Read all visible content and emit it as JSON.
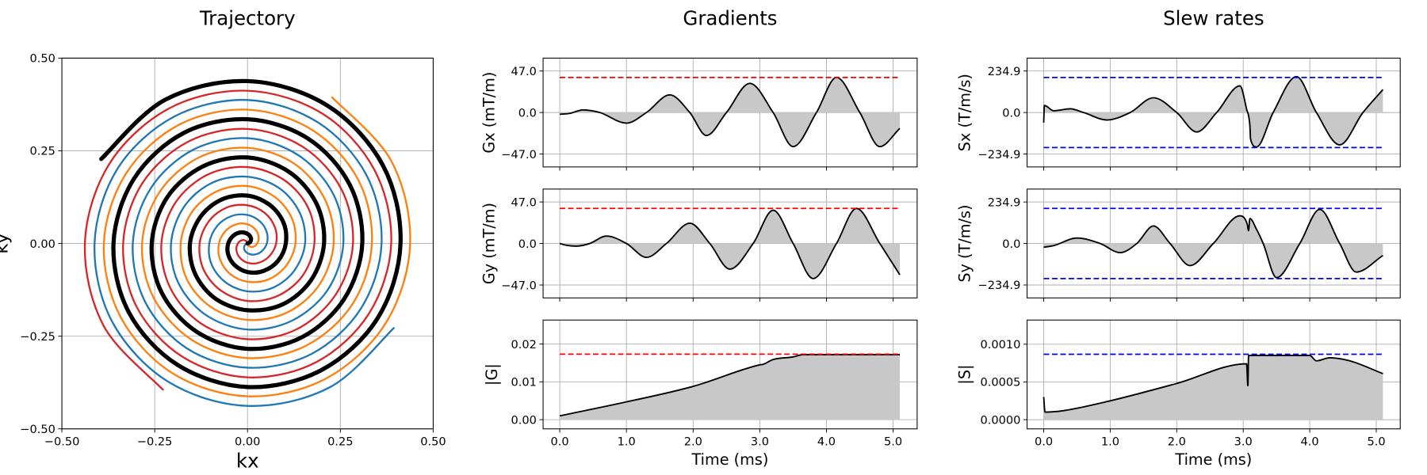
{
  "chart_data": [
    {
      "type": "line",
      "title": "Trajectory",
      "xlabel": "kx",
      "ylabel": "ky",
      "xlim": [
        -0.5,
        0.5
      ],
      "ylim": [
        -0.5,
        0.5
      ],
      "xticks": [
        {
          "value": -0.5,
          "label": "−0.50"
        },
        {
          "value": -0.25,
          "label": "−0.25"
        },
        {
          "value": 0,
          "label": "0.00"
        },
        {
          "value": 0.25,
          "label": "0.25"
        },
        {
          "value": 0.5,
          "label": "0.50"
        }
      ],
      "yticks": [
        {
          "value": -0.5,
          "label": "−0.50"
        },
        {
          "value": -0.25,
          "label": "−0.25"
        },
        {
          "value": 0,
          "label": "0.00"
        },
        {
          "value": 0.25,
          "label": "0.25"
        },
        {
          "value": 0.5,
          "label": "0.50"
        }
      ],
      "grid": true,
      "series": [
        {
          "color": "#d62728",
          "width": 2,
          "x": [
            0,
            -0.004,
            -0.015,
            -0.026,
            -0.03,
            -0.022,
            0,
            0.03,
            0.059,
            0.077,
            0.074,
            0.047,
            0,
            -0.056,
            -0.104,
            -0.129,
            -0.119,
            -0.073,
            0,
            0.082,
            0.149,
            0.18,
            0.164,
            0.099,
            0,
            -0.107,
            -0.193,
            -0.232,
            -0.208,
            -0.125,
            0,
            0.133,
            0.238,
            0.284,
            0.253,
            0.15,
            0,
            -0.159,
            -0.283,
            -0.335,
            -0.298,
            -0.176,
            0,
            0.185,
            0.327,
            0.387,
            0.342,
            0.202,
            0,
            -0.21,
            -0.372,
            -0.438,
            -0.387,
            -0.228
          ],
          "y": [
            0,
            0.007,
            0.009,
            0,
            -0.017,
            -0.037,
            -0.052,
            -0.052,
            -0.034,
            0,
            0.043,
            0.082,
            0.103,
            0.097,
            0.06,
            0,
            -0.069,
            -0.126,
            -0.155,
            -0.141,
            -0.086,
            0,
            0.095,
            0.171,
            0.206,
            0.186,
            0.112,
            0,
            -0.12,
            -0.216,
            -0.258,
            -0.231,
            -0.137,
            0,
            0.146,
            0.26,
            0.309,
            0.275,
            0.163,
            0,
            -0.172,
            -0.305,
            -0.361,
            -0.32,
            -0.189,
            0,
            0.198,
            0.35,
            0.412,
            0.365,
            0.215,
            0,
            -0.223,
            -0.394
          ]
        },
        {
          "color": "#1f77b4",
          "width": 2,
          "x": [
            0,
            -0.007,
            -0.009,
            0,
            0.017,
            0.037,
            0.052,
            0.052,
            0.034,
            0,
            -0.043,
            -0.082,
            -0.103,
            -0.097,
            -0.06,
            0,
            0.069,
            0.126,
            0.155,
            0.141,
            0.086,
            0,
            -0.095,
            -0.171,
            -0.206,
            -0.186,
            -0.112,
            0,
            0.12,
            0.216,
            0.258,
            0.231,
            0.137,
            0,
            -0.146,
            -0.26,
            -0.309,
            -0.275,
            -0.163,
            0,
            0.172,
            0.305,
            0.361,
            0.32,
            0.189,
            0,
            -0.198,
            -0.35,
            -0.412,
            -0.365,
            -0.215,
            0,
            0.223,
            0.394
          ],
          "y": [
            0,
            -0.004,
            -0.015,
            -0.026,
            -0.03,
            -0.022,
            0,
            0.03,
            0.059,
            0.077,
            0.074,
            0.047,
            0,
            -0.056,
            -0.104,
            -0.129,
            -0.119,
            -0.073,
            0,
            0.082,
            0.149,
            0.18,
            0.164,
            0.099,
            0,
            -0.107,
            -0.193,
            -0.232,
            -0.208,
            -0.125,
            0,
            0.133,
            0.238,
            0.284,
            0.253,
            0.15,
            0,
            -0.159,
            -0.283,
            -0.335,
            -0.298,
            -0.176,
            0,
            0.185,
            0.327,
            0.387,
            0.342,
            0.202,
            0,
            -0.21,
            -0.372,
            -0.438,
            -0.387,
            -0.228
          ]
        },
        {
          "color": "#ff7f0e",
          "width": 2,
          "x": [
            0,
            0.004,
            0.015,
            0.026,
            0.03,
            0.022,
            0,
            -0.03,
            -0.059,
            -0.077,
            -0.074,
            -0.047,
            0,
            0.056,
            0.104,
            0.129,
            0.119,
            0.073,
            0,
            -0.082,
            -0.149,
            -0.18,
            -0.164,
            -0.099,
            0,
            0.107,
            0.193,
            0.232,
            0.208,
            0.125,
            0,
            -0.133,
            -0.238,
            -0.284,
            -0.253,
            -0.15,
            0,
            0.159,
            0.283,
            0.335,
            0.298,
            0.176,
            0,
            -0.185,
            -0.327,
            -0.387,
            -0.342,
            -0.202,
            0,
            0.21,
            0.372,
            0.438,
            0.387,
            0.228
          ],
          "y": [
            0,
            -0.007,
            -0.009,
            0,
            0.017,
            0.037,
            0.052,
            0.052,
            0.034,
            0,
            -0.043,
            -0.082,
            -0.103,
            -0.097,
            -0.06,
            0,
            0.069,
            0.126,
            0.155,
            0.141,
            0.086,
            0,
            -0.095,
            -0.171,
            -0.206,
            -0.186,
            -0.112,
            0,
            0.12,
            0.216,
            0.258,
            0.231,
            0.137,
            0,
            -0.146,
            -0.26,
            -0.309,
            -0.275,
            -0.163,
            0,
            0.172,
            0.305,
            0.361,
            0.32,
            0.189,
            0,
            -0.198,
            -0.35,
            -0.412,
            -0.365,
            -0.215,
            0,
            0.223,
            0.394
          ]
        },
        {
          "color": "#000000",
          "width": 4.5,
          "x": [
            0,
            0.007,
            0.009,
            0,
            -0.017,
            -0.037,
            -0.052,
            -0.052,
            -0.034,
            0,
            0.043,
            0.082,
            0.103,
            0.097,
            0.06,
            0,
            -0.069,
            -0.126,
            -0.155,
            -0.141,
            -0.086,
            0,
            0.095,
            0.171,
            0.206,
            0.186,
            0.112,
            0,
            -0.12,
            -0.216,
            -0.258,
            -0.231,
            -0.137,
            0,
            0.146,
            0.26,
            0.309,
            0.275,
            0.163,
            0,
            -0.172,
            -0.305,
            -0.361,
            -0.32,
            -0.189,
            0,
            0.198,
            0.35,
            0.412,
            0.365,
            0.215,
            0,
            -0.223,
            -0.394
          ],
          "y": [
            0,
            0.004,
            0.015,
            0.026,
            0.03,
            0.022,
            0,
            -0.03,
            -0.059,
            -0.077,
            -0.074,
            -0.047,
            0,
            0.056,
            0.104,
            0.129,
            0.119,
            0.073,
            0,
            -0.082,
            -0.149,
            -0.18,
            -0.164,
            -0.099,
            0,
            0.107,
            0.193,
            0.232,
            0.208,
            0.125,
            0,
            -0.133,
            -0.238,
            -0.284,
            -0.253,
            -0.15,
            0,
            0.159,
            0.283,
            0.335,
            0.298,
            0.176,
            0,
            -0.185,
            -0.327,
            -0.387,
            -0.342,
            -0.202,
            0,
            0.21,
            0.372,
            0.438,
            0.387,
            0.228
          ]
        }
      ]
    },
    {
      "type": "area",
      "title": "Gradients",
      "ylabel": "Gx (mT/m)",
      "color": "#000000",
      "fill": "#c8c8c8",
      "x": [
        0,
        0.15,
        0.35,
        0.6,
        1.0,
        1.3,
        1.65,
        1.95,
        2.2,
        2.5,
        2.85,
        3.2,
        3.5,
        3.85,
        4.15,
        4.5,
        4.8,
        5.1
      ],
      "values": [
        -2,
        -1,
        3,
        0,
        -12,
        0,
        20,
        0,
        -26,
        0,
        33,
        0,
        -38.6,
        0,
        39.7,
        0,
        -38.6,
        -18
      ],
      "xlim": [
        -0.25,
        5.36
      ],
      "ylim": [
        -61.6,
        61.6
      ],
      "xticks": [
        0,
        1,
        2,
        3,
        4,
        5
      ],
      "yticks": [
        {
          "value": -47,
          "label": "−47.0"
        },
        {
          "value": 0,
          "label": "0.0"
        },
        {
          "value": 47,
          "label": "47.0"
        }
      ],
      "grid": true,
      "hlines": [
        39.7
      ],
      "hline_color": "#ff0000"
    },
    {
      "type": "area",
      "ylabel": "Gy (mT/m)",
      "color": "#000000",
      "fill": "#c8c8c8",
      "x": [
        0,
        0.1,
        0.25,
        0.45,
        0.7,
        1.0,
        1.3,
        1.6,
        1.95,
        2.25,
        2.55,
        2.9,
        3.2,
        3.5,
        3.8,
        4.15,
        4.45,
        4.8,
        5.1
      ],
      "values": [
        0,
        -2,
        -3,
        0,
        8.4,
        0,
        -15.7,
        0,
        23,
        0,
        -29,
        0,
        37.6,
        0,
        -39.7,
        0,
        39.7,
        0,
        -35.5
      ],
      "xlim": [
        -0.25,
        5.36
      ],
      "ylim": [
        -61.6,
        61.6
      ],
      "xticks": [
        0,
        1,
        2,
        3,
        4,
        5
      ],
      "yticks": [
        {
          "value": -47,
          "label": "−47.0"
        },
        {
          "value": 0,
          "label": "0.0"
        },
        {
          "value": 47,
          "label": "47.0"
        }
      ],
      "grid": true,
      "hlines": [
        39.7
      ],
      "hline_color": "#ff0000"
    },
    {
      "type": "area",
      "ylabel": "|G|",
      "xlabel": "Time (ms)",
      "color": "#000000",
      "fill": "#c8c8c8",
      "x": [
        0,
        1,
        2,
        3,
        3.05,
        3.2,
        3.5,
        3.65,
        5.1
      ],
      "values": [
        0.001,
        0.0047,
        0.0088,
        0.0145,
        0.01463,
        0.0159,
        0.0166,
        0.0172,
        0.0172
      ],
      "xlim": [
        -0.25,
        5.36
      ],
      "ylim": [
        -0.00244,
        0.02634
      ],
      "xticks": [
        {
          "value": 0,
          "label": "0.0"
        },
        {
          "value": 1,
          "label": "1.0"
        },
        {
          "value": 2,
          "label": "2.0"
        },
        {
          "value": 3,
          "label": "3.0"
        },
        {
          "value": 4,
          "label": "4.0"
        },
        {
          "value": 5,
          "label": "5.0"
        }
      ],
      "yticks": [
        {
          "value": 0,
          "label": "0.00"
        },
        {
          "value": 0.01,
          "label": "0.01"
        },
        {
          "value": 0.02,
          "label": "0.02"
        }
      ],
      "grid": true,
      "hlines": [
        0.01732
      ],
      "hline_color": "#ff0000"
    },
    {
      "type": "area",
      "title": "Slew rates",
      "ylabel": "Sx (T/m/s)",
      "color": "#000000",
      "fill": "#c8c8c8",
      "x": [
        0,
        0.01,
        0.15,
        0.4,
        0.6,
        0.95,
        1.3,
        1.65,
        2.0,
        2.3,
        2.6,
        2.95,
        3.05,
        3.1,
        3.11,
        3.2,
        3.45,
        3.8,
        4.1,
        4.45,
        4.8,
        5.1
      ],
      "values": [
        -57,
        40,
        10,
        21,
        0,
        -42,
        0,
        83.5,
        0,
        -110,
        0,
        151,
        20,
        -75,
        -150,
        -195,
        0,
        203,
        0,
        -183,
        0,
        130
      ],
      "xlim": [
        -0.25,
        5.36
      ],
      "ylim": [
        -308,
        308
      ],
      "xticks": [
        0,
        1,
        2,
        3,
        4,
        5
      ],
      "yticks": [
        {
          "value": -234.9,
          "label": "−234.9"
        },
        {
          "value": 0,
          "label": "0.0"
        },
        {
          "value": 234.9,
          "label": "234.9"
        }
      ],
      "grid": true,
      "hlines": [
        198.4,
        -198.4
      ],
      "hline_color": "#0000ff"
    },
    {
      "type": "area",
      "ylabel": "Sy (T/m/s)",
      "color": "#000000",
      "fill": "#c8c8c8",
      "x": [
        0,
        0.15,
        0.5,
        0.85,
        1.15,
        1.4,
        1.65,
        1.9,
        2.2,
        2.55,
        2.95,
        3.06,
        3.08,
        3.1,
        3.2,
        3.3,
        3.5,
        3.85,
        4.15,
        4.45,
        4.7,
        5.1
      ],
      "values": [
        -21,
        -12,
        31,
        0,
        -52,
        0,
        99,
        0,
        -125,
        0,
        157,
        110,
        73,
        141,
        80,
        0,
        -193,
        0,
        193,
        0,
        -162,
        -68
      ],
      "xlim": [
        -0.25,
        5.36
      ],
      "ylim": [
        -308,
        308
      ],
      "xticks": [
        0,
        1,
        2,
        3,
        4,
        5
      ],
      "yticks": [
        {
          "value": -234.9,
          "label": "−234.9"
        },
        {
          "value": 0,
          "label": "0.0"
        },
        {
          "value": 234.9,
          "label": "234.9"
        }
      ],
      "grid": true,
      "hlines": [
        198.4,
        -198.4
      ],
      "hline_color": "#0000ff"
    },
    {
      "type": "area",
      "ylabel": "|S|",
      "xlabel": "Time (ms)",
      "color": "#000000",
      "fill": "#c8c8c8",
      "x": [
        0,
        0.02,
        0.3,
        1,
        2,
        3.05,
        3.07,
        3.08,
        4.0,
        4.1,
        4.3,
        4.6,
        5.1
      ],
      "values": [
        0.0003,
        0.0001,
        0.00012,
        0.00025,
        0.00048,
        0.00074,
        0.00045,
        0.00085,
        0.00085,
        0.00078,
        0.00082,
        0.00078,
        0.00061
      ],
      "xlim": [
        -0.25,
        5.36
      ],
      "ylim": [
        -0.000122,
        0.00132
      ],
      "xticks": [
        {
          "value": 0,
          "label": "0.0"
        },
        {
          "value": 1,
          "label": "1.0"
        },
        {
          "value": 2,
          "label": "2.0"
        },
        {
          "value": 3,
          "label": "3.0"
        },
        {
          "value": 4,
          "label": "4.0"
        },
        {
          "value": 5,
          "label": "5.0"
        }
      ],
      "yticks": [
        {
          "value": 0,
          "label": "0.0000"
        },
        {
          "value": 0.0005,
          "label": "0.0005"
        },
        {
          "value": 0.001,
          "label": "0.0010"
        }
      ],
      "grid": true,
      "hlines": [
        0.000866
      ],
      "hline_color": "#0000ff"
    }
  ]
}
